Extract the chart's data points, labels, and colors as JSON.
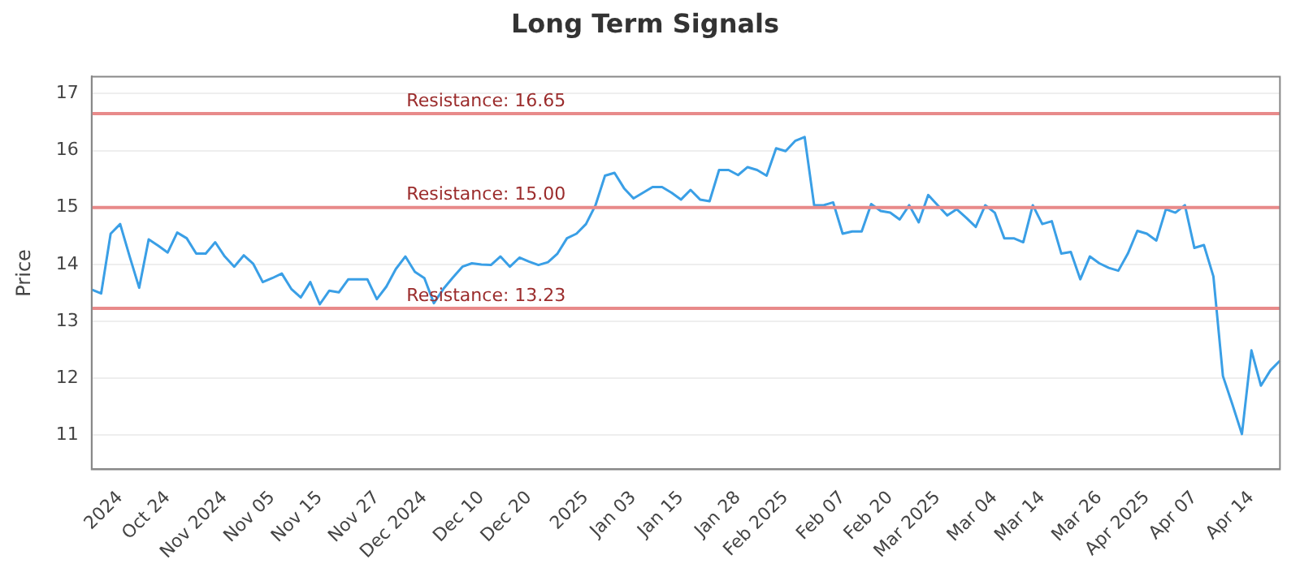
{
  "chart_data": {
    "type": "line",
    "title": "Long Term Signals",
    "ylabel": "Price",
    "categories": [
      null,
      null,
      null,
      "2024",
      null,
      null,
      null,
      null,
      "Oct 24",
      null,
      null,
      null,
      null,
      null,
      "Nov 2024",
      null,
      null,
      null,
      null,
      "Nov 05",
      null,
      null,
      null,
      null,
      "Nov 15",
      null,
      null,
      null,
      null,
      null,
      "Nov 27",
      null,
      null,
      null,
      null,
      "Dec 2024",
      null,
      null,
      null,
      null,
      null,
      "Dec 10",
      null,
      null,
      null,
      null,
      "Dec 20",
      null,
      null,
      null,
      null,
      null,
      "2025",
      null,
      null,
      null,
      null,
      "Jan 03",
      null,
      null,
      null,
      null,
      "Jan 15",
      null,
      null,
      null,
      null,
      null,
      "Jan 28",
      null,
      null,
      null,
      null,
      "Feb 2025",
      null,
      null,
      null,
      null,
      null,
      "Feb 07",
      null,
      null,
      null,
      null,
      "Feb 20",
      null,
      null,
      null,
      null,
      "Mar 2025",
      null,
      null,
      null,
      null,
      null,
      "Mar 04",
      null,
      null,
      null,
      null,
      "Mar 14",
      null,
      null,
      null,
      null,
      null,
      "Mar 26",
      null,
      null,
      null,
      null,
      "Apr 2025",
      null,
      null,
      null,
      null,
      "Apr 07",
      null,
      null,
      null,
      null,
      null,
      "Apr 14",
      null,
      null,
      null
    ],
    "series": [
      {
        "color": "#3a9fe6",
        "values": [
          13.56,
          13.49,
          14.54,
          14.71,
          14.14,
          13.59,
          14.44,
          14.33,
          14.21,
          14.56,
          14.46,
          14.19,
          14.19,
          14.39,
          14.14,
          13.96,
          14.16,
          14.01,
          13.69,
          13.76,
          13.84,
          13.57,
          13.42,
          13.69,
          13.3,
          13.54,
          13.51,
          13.74,
          13.74,
          13.74,
          13.39,
          13.61,
          13.92,
          14.14,
          13.87,
          13.76,
          13.32,
          13.57,
          13.77,
          13.96,
          14.02,
          14.0,
          13.99,
          14.14,
          13.96,
          14.12,
          14.05,
          13.99,
          14.04,
          14.19,
          14.46,
          14.54,
          14.71,
          15.04,
          15.56,
          15.61,
          15.34,
          15.16,
          15.26,
          15.36,
          15.36,
          15.26,
          15.14,
          15.31,
          15.14,
          15.11,
          15.66,
          15.66,
          15.57,
          15.71,
          15.66,
          15.56,
          16.04,
          15.99,
          16.17,
          16.24,
          15.04,
          15.04,
          15.09,
          14.54,
          14.58,
          14.58,
          15.06,
          14.94,
          14.91,
          14.79,
          15.04,
          14.74,
          15.22,
          15.04,
          14.86,
          14.97,
          14.82,
          14.66,
          15.04,
          14.91,
          14.46,
          14.46,
          14.39,
          15.04,
          14.71,
          14.76,
          14.19,
          14.22,
          13.74,
          14.14,
          14.02,
          13.94,
          13.89,
          14.19,
          14.59,
          14.54,
          14.42,
          14.97,
          14.91,
          15.04,
          14.29,
          14.34,
          13.79,
          12.04,
          11.54,
          11.02,
          12.49,
          11.87,
          12.14,
          12.31
        ]
      }
    ],
    "ylim": [
      10.4,
      17.3
    ],
    "yticks": [
      11,
      12,
      13,
      14,
      15,
      16,
      17
    ],
    "grid": "y",
    "legend": false,
    "marker": "none",
    "line_style": "solid",
    "ref_lines": [
      {
        "axis": "y",
        "value": 16.65,
        "label": "Resistance: 16.65",
        "color": "#e88a8a"
      },
      {
        "axis": "y",
        "value": 15.0,
        "label": "Resistance: 15.00",
        "color": "#e88a8a"
      },
      {
        "axis": "y",
        "value": 13.23,
        "label": "Resistance: 13.23",
        "color": "#e88a8a"
      }
    ]
  }
}
